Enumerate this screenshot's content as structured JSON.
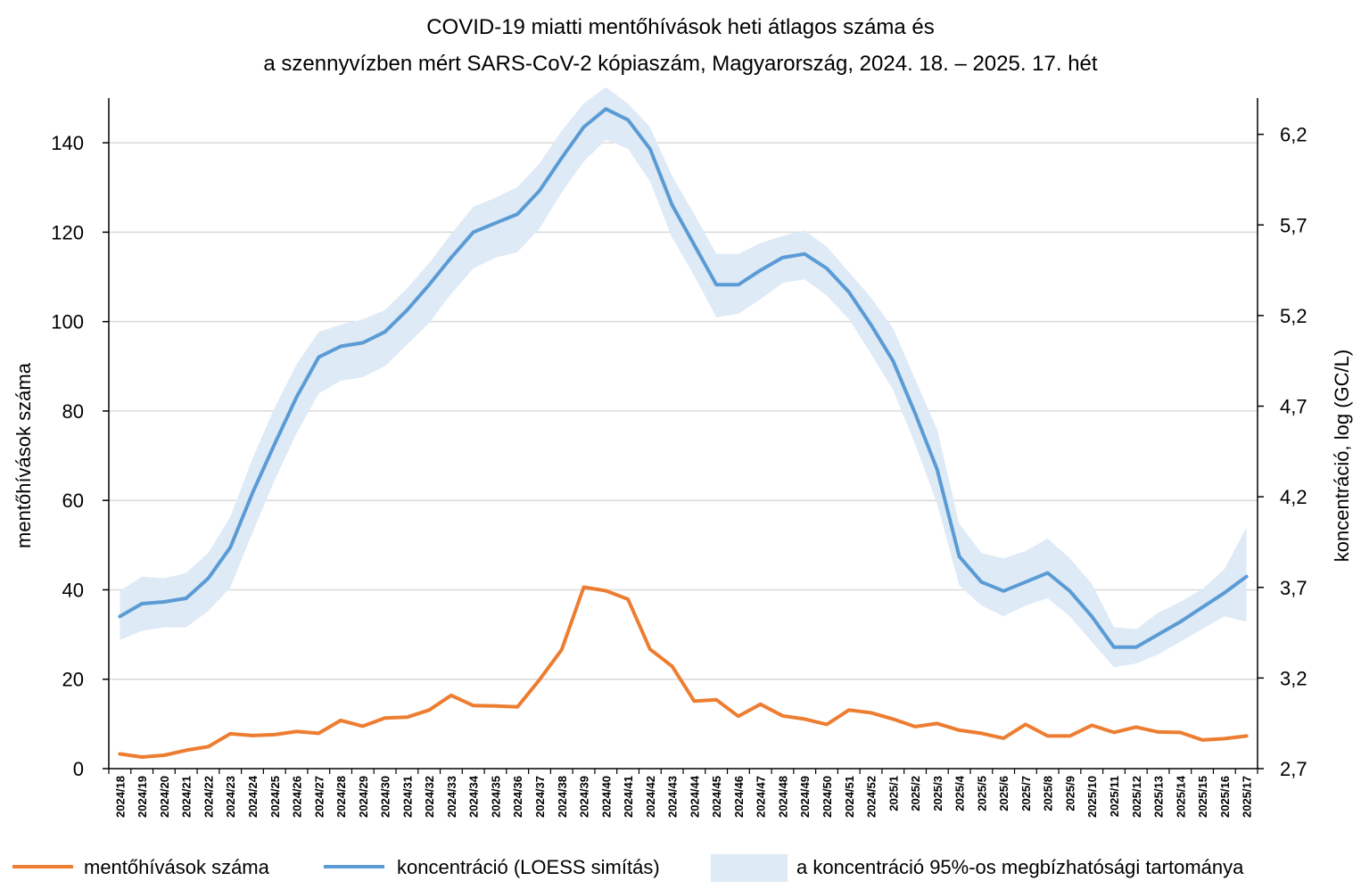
{
  "chart_data": {
    "type": "line",
    "title_line1": "COVID-19 miatti mentőhívások heti átlagos száma és",
    "title_line2": "a szennyvízben mért SARS-CoV-2 kópiaszám, Magyarország, 2024. 18. – 2025. 17. hét",
    "ylabel_left": "mentőhívások száma",
    "ylabel_right": "koncentráció, log (GC/L)",
    "ylim_left": [
      0,
      150
    ],
    "yticks_left": [
      "0",
      "20",
      "40",
      "60",
      "80",
      "100",
      "120",
      "140"
    ],
    "ylim_right": [
      2.7,
      6.4
    ],
    "yticks_right": [
      "2,7",
      "3,2",
      "3,7",
      "4,2",
      "4,7",
      "5,2",
      "5,7",
      "6,2"
    ],
    "grid": true,
    "legend_position": "bottom",
    "categories": [
      "2024/18",
      "2024/19",
      "2024/20",
      "2024/21",
      "2024/22",
      "2024/23",
      "2024/24",
      "2024/25",
      "2024/26",
      "2024/27",
      "2024/28",
      "2024/29",
      "2024/30",
      "2024/31",
      "2024/32",
      "2024/33",
      "2024/34",
      "2024/35",
      "2024/36",
      "2024/37",
      "2024/38",
      "2024/39",
      "2024/40",
      "2024/41",
      "2024/42",
      "2024/43",
      "2024/44",
      "2024/45",
      "2024/46",
      "2024/47",
      "2024/48",
      "2024/49",
      "2024/50",
      "2024/51",
      "2024/52",
      "2025/1",
      "2025/2",
      "2025/3",
      "2025/4",
      "2025/5",
      "2025/6",
      "2025/7",
      "2025/8",
      "2025/9",
      "2025/10",
      "2025/11",
      "2025/12",
      "2025/13",
      "2025/14",
      "2025/15",
      "2025/16",
      "2025/17"
    ],
    "series": [
      {
        "name": "mentőhívások száma",
        "axis": "left",
        "color": "#ED7D31",
        "values": [
          3.3,
          2.6,
          3.0,
          4.1,
          4.9,
          7.8,
          7.4,
          7.6,
          8.3,
          7.9,
          10.8,
          9.5,
          11.3,
          11.5,
          13.1,
          16.4,
          14.1,
          14.0,
          13.8,
          19.9,
          26.6,
          40.6,
          39.8,
          37.9,
          26.7,
          22.9,
          15.1,
          15.4,
          11.7,
          14.4,
          11.8,
          11.1,
          9.9,
          13.1,
          12.5,
          11.1,
          9.4,
          10.1,
          8.6,
          7.9,
          6.8,
          9.9,
          7.3,
          7.3,
          9.7,
          8.1,
          9.3,
          8.2,
          8.1,
          6.4,
          6.7,
          7.3
        ]
      },
      {
        "name": "koncentráció (LOESS simítás)",
        "axis": "right",
        "color": "#5B9BD5",
        "values": [
          3.54,
          3.61,
          3.62,
          3.64,
          3.75,
          3.92,
          4.22,
          4.49,
          4.75,
          4.97,
          5.03,
          5.05,
          5.11,
          5.23,
          5.37,
          5.52,
          5.66,
          5.71,
          5.76,
          5.89,
          6.07,
          6.24,
          6.34,
          6.28,
          6.12,
          5.81,
          5.59,
          5.37,
          5.37,
          5.45,
          5.52,
          5.54,
          5.46,
          5.33,
          5.15,
          4.95,
          4.66,
          4.35,
          3.87,
          3.73,
          3.68,
          3.73,
          3.78,
          3.68,
          3.54,
          3.37,
          3.37,
          3.44,
          3.51,
          3.59,
          3.67,
          3.76
        ]
      }
    ],
    "confidence_band": {
      "name": "a koncentráció 95%-os megbízhatósági tartománya",
      "axis": "right",
      "color": "#DEEAF6",
      "lower": [
        3.41,
        3.46,
        3.48,
        3.48,
        3.57,
        3.7,
        4.0,
        4.29,
        4.55,
        4.77,
        4.84,
        4.86,
        4.92,
        5.04,
        5.16,
        5.32,
        5.46,
        5.52,
        5.55,
        5.68,
        5.88,
        6.05,
        6.17,
        6.12,
        5.94,
        5.63,
        5.42,
        5.19,
        5.21,
        5.29,
        5.38,
        5.4,
        5.31,
        5.18,
        4.99,
        4.79,
        4.49,
        4.16,
        3.71,
        3.6,
        3.54,
        3.6,
        3.64,
        3.54,
        3.4,
        3.26,
        3.28,
        3.33,
        3.4,
        3.47,
        3.54,
        3.51
      ],
      "upper": [
        3.68,
        3.76,
        3.75,
        3.78,
        3.89,
        4.09,
        4.41,
        4.69,
        4.93,
        5.11,
        5.15,
        5.18,
        5.23,
        5.35,
        5.49,
        5.65,
        5.8,
        5.85,
        5.91,
        6.04,
        6.22,
        6.37,
        6.46,
        6.37,
        6.24,
        5.97,
        5.76,
        5.54,
        5.54,
        5.6,
        5.64,
        5.67,
        5.58,
        5.44,
        5.3,
        5.13,
        4.85,
        4.57,
        4.05,
        3.89,
        3.86,
        3.9,
        3.97,
        3.86,
        3.72,
        3.48,
        3.47,
        3.56,
        3.62,
        3.69,
        3.8,
        4.03
      ]
    }
  }
}
